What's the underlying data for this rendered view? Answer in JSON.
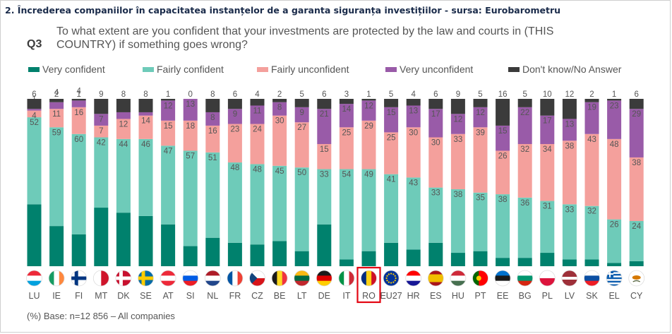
{
  "page": {
    "title": "2. Încrederea companiilor în capacitatea instanțelor de a garanta siguranța investițiilor  - sursa: Eurobarometru",
    "question_label": "Q3",
    "question_text": "To what extent are you confident that your investments are protected by the law and courts in (THIS COUNTRY) if something goes wrong?",
    "base_note": "(%) Base: n=12 856 – All companies"
  },
  "legend": [
    {
      "label": "Very confident",
      "color": "#00816d"
    },
    {
      "label": "Fairly confident",
      "color": "#6ecbb9"
    },
    {
      "label": "Fairly unconfident",
      "color": "#f4a09c"
    },
    {
      "label": "Very unconfident",
      "color": "#995ba8"
    },
    {
      "label": "Don't know/No Answer",
      "color": "#3b3b3b"
    }
  ],
  "chart_data": {
    "type": "bar",
    "stacked": true,
    "ylim": [
      0,
      100
    ],
    "highlighted_category": "RO",
    "categories": [
      "LU",
      "IE",
      "FI",
      "MT",
      "DK",
      "SE",
      "AT",
      "SI",
      "NL",
      "FR",
      "CZ",
      "BE",
      "LT",
      "DE",
      "IT",
      "RO",
      "EU27",
      "HR",
      "ES",
      "HU",
      "PT",
      "EE",
      "BG",
      "PL",
      "LV",
      "SK",
      "EL",
      "CY"
    ],
    "flag_icons": [
      "flag-lu-icon",
      "flag-ie-icon",
      "flag-fi-icon",
      "flag-mt-icon",
      "flag-dk-icon",
      "flag-se-icon",
      "flag-at-icon",
      "flag-si-icon",
      "flag-nl-icon",
      "flag-fr-icon",
      "flag-cz-icon",
      "flag-be-icon",
      "flag-lt-icon",
      "flag-de-icon",
      "flag-it-icon",
      "flag-ro-icon",
      "flag-eu-icon",
      "flag-hr-icon",
      "flag-es-icon",
      "flag-hu-icon",
      "flag-pt-icon",
      "flag-ee-icon",
      "flag-bg-icon",
      "flag-pl-icon",
      "flag-lv-icon",
      "flag-sk-icon",
      "flag-el-icon",
      "flag-cy-icon"
    ],
    "series": [
      {
        "name": "Very confident",
        "color": "#00816d",
        "values": [
          37,
          24,
          19,
          35,
          32,
          30,
          25,
          12,
          17,
          14,
          13,
          15,
          9,
          25,
          4,
          9,
          14,
          10,
          14,
          8,
          9,
          5,
          5,
          8,
          4,
          4,
          2,
          3
        ]
      },
      {
        "name": "Fairly confident",
        "color": "#6ecbb9",
        "values": [
          52,
          59,
          60,
          42,
          44,
          46,
          47,
          57,
          51,
          48,
          48,
          45,
          50,
          33,
          54,
          49,
          41,
          43,
          33,
          38,
          35,
          38,
          36,
          31,
          33,
          32,
          26,
          24
        ]
      },
      {
        "name": "Fairly unconfident",
        "color": "#f4a09c",
        "values": [
          4,
          11,
          16,
          7,
          12,
          14,
          15,
          18,
          16,
          23,
          24,
          30,
          27,
          15,
          25,
          29,
          25,
          30,
          30,
          33,
          39,
          26,
          32,
          34,
          38,
          43,
          48,
          38
        ]
      },
      {
        "name": "Very unconfident",
        "color": "#995ba8",
        "values": [
          1,
          4,
          4,
          7,
          4,
          2,
          12,
          13,
          8,
          9,
          11,
          8,
          9,
          21,
          14,
          12,
          15,
          13,
          17,
          12,
          12,
          15,
          22,
          17,
          13,
          19,
          23,
          29
        ]
      },
      {
        "name": "Don't know/No Answer",
        "color": "#3b3b3b",
        "values": [
          6,
          2,
          1,
          9,
          8,
          8,
          1,
          0,
          8,
          6,
          4,
          2,
          5,
          6,
          3,
          1,
          5,
          4,
          6,
          9,
          5,
          16,
          5,
          10,
          12,
          2,
          1,
          6
        ]
      }
    ]
  }
}
